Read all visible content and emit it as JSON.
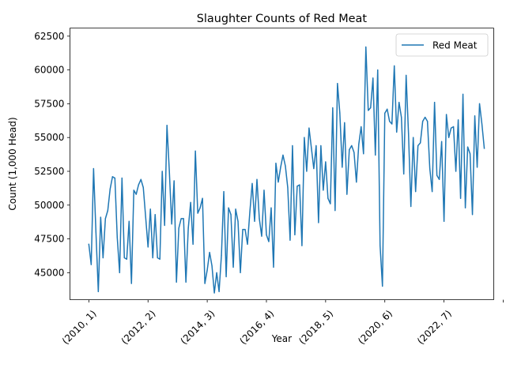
{
  "chart_data": {
    "type": "line",
    "title": "Slaughter Counts of Red Meat",
    "xlabel": "Year",
    "ylabel": "Count (1,000 Head)",
    "ylim": [
      43000,
      63100
    ],
    "yticks": [
      45000,
      47500,
      50000,
      52500,
      55000,
      57500,
      60000,
      62500
    ],
    "ytick_labels": [
      "45000",
      "47500",
      "50000",
      "52500",
      "55000",
      "57500",
      "60000",
      "62500"
    ],
    "xlim": [
      -8,
      171
    ],
    "xticks": [
      0,
      25,
      50,
      75,
      100,
      125,
      150,
      175
    ],
    "xtick_labels": [
      "(2010, 1)",
      "(2012, 2)",
      "(2014, 3)",
      "(2016, 4)",
      "(2018, 5)",
      "(2020, 6)",
      "(2022, 7)",
      ""
    ],
    "legend": {
      "position": "top-right"
    },
    "grid": false,
    "series": [
      {
        "name": "Red Meat",
        "color": "#1f77b4",
        "values": [
          47100,
          45600,
          52700,
          48000,
          43600,
          49100,
          46100,
          49000,
          49600,
          51200,
          52100,
          52000,
          47600,
          45000,
          52000,
          46100,
          46000,
          48800,
          44200,
          51100,
          50800,
          51500,
          51900,
          51300,
          49100,
          46900,
          49700,
          46100,
          49300,
          46100,
          46000,
          52500,
          48500,
          55900,
          52500,
          48600,
          51800,
          44300,
          48300,
          49000,
          49000,
          44300,
          48300,
          50200,
          47100,
          54000,
          49400,
          49800,
          50500,
          44200,
          45200,
          46500,
          45500,
          43500,
          45000,
          43600,
          46300,
          51000,
          44700,
          49800,
          49300,
          45400,
          49700,
          48800,
          45000,
          48200,
          48200,
          47100,
          49500,
          51600,
          48800,
          51900,
          49000,
          47700,
          51100,
          47800,
          47300,
          49800,
          45400,
          53100,
          51700,
          52800,
          53700,
          52900,
          51300,
          47400,
          54400,
          47800,
          51400,
          51500,
          47000,
          55000,
          52500,
          55700,
          54200,
          52700,
          54400,
          48700,
          54400,
          51100,
          53200,
          50500,
          50100,
          57200,
          49600,
          59000,
          56800,
          52800,
          56100,
          50800,
          54100,
          54400,
          53900,
          51700,
          54500,
          55800,
          53800,
          61700,
          57000,
          57200,
          59400,
          53700,
          60000,
          47000,
          44000,
          56800,
          57100,
          56200,
          56000,
          60300,
          55400,
          57600,
          56500,
          52300,
          59600,
          55300,
          49900,
          55000,
          51000,
          54400,
          54600,
          56200,
          56500,
          56200,
          52700,
          51000,
          57600,
          52200,
          51900,
          54700,
          48800,
          56700,
          55000,
          55700,
          55800,
          52500,
          56300,
          50500,
          58200,
          49800,
          54300,
          53800,
          49300,
          56600,
          52800,
          57500,
          56000,
          54200
        ]
      }
    ]
  }
}
